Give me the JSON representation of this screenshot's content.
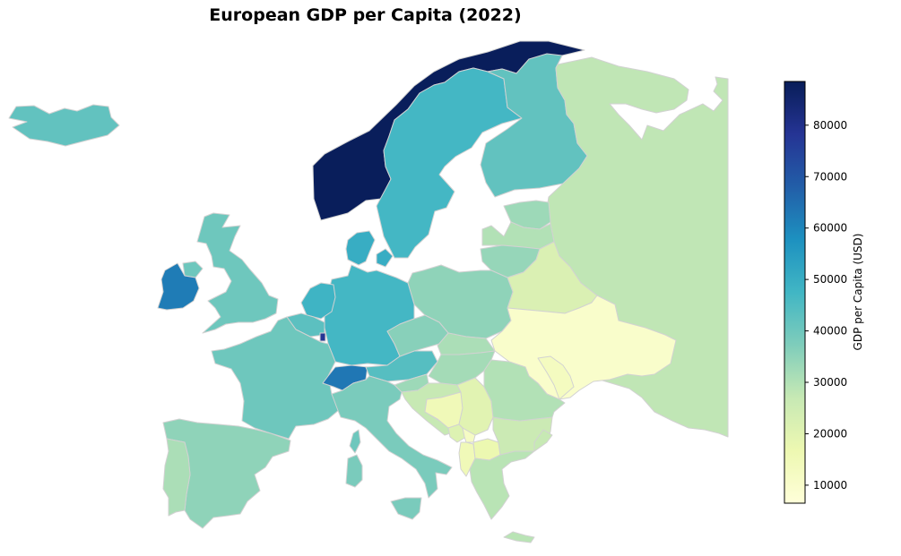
{
  "title": "European GDP per Capita (2022)",
  "colorbar": {
    "label": "GDP per Capita (USD)",
    "min": 6500,
    "max": 88500,
    "ticks": [
      "10000",
      "20000",
      "30000",
      "40000",
      "50000",
      "60000",
      "70000",
      "80000"
    ],
    "colormap": [
      "#ffffd9",
      "#edf8b1",
      "#c7e9b4",
      "#7fcdbb",
      "#41b6c4",
      "#1d91c0",
      "#225ea8",
      "#253494",
      "#081d58"
    ]
  },
  "chart_data": {
    "type": "choropleth",
    "title": "European GDP per Capita (2022)",
    "value_label": "GDP per Capita (USD)",
    "range": [
      6500,
      88500
    ],
    "regions": [
      {
        "region": "Norway",
        "value": 88000
      },
      {
        "region": "Iceland",
        "value": 42000
      },
      {
        "region": "Sweden",
        "value": 47000
      },
      {
        "region": "Finland",
        "value": 42000
      },
      {
        "region": "Denmark",
        "value": 50000
      },
      {
        "region": "Russia",
        "value": 28000
      },
      {
        "region": "Estonia",
        "value": 33000
      },
      {
        "region": "Latvia",
        "value": 30000
      },
      {
        "region": "Lithuania",
        "value": 34000
      },
      {
        "region": "Belarus",
        "value": 22000
      },
      {
        "region": "Poland",
        "value": 35000
      },
      {
        "region": "Germany",
        "value": 47000
      },
      {
        "region": "Netherlands",
        "value": 48000
      },
      {
        "region": "Belgium",
        "value": 43000
      },
      {
        "region": "Luxembourg",
        "value": 78000
      },
      {
        "region": "France",
        "value": 40000
      },
      {
        "region": "United Kingdom",
        "value": 40000
      },
      {
        "region": "Ireland",
        "value": 62000
      },
      {
        "region": "Switzerland",
        "value": 63000
      },
      {
        "region": "Austria",
        "value": 44000
      },
      {
        "region": "Czechia",
        "value": 36000
      },
      {
        "region": "Slovakia",
        "value": 31000
      },
      {
        "region": "Hungary",
        "value": 32000
      },
      {
        "region": "Slovenia",
        "value": 33000
      },
      {
        "region": "Croatia",
        "value": 27000
      },
      {
        "region": "Bosnia and Herzegovina",
        "value": 15000
      },
      {
        "region": "Serbia",
        "value": 20000
      },
      {
        "region": "Montenegro",
        "value": 21000
      },
      {
        "region": "Kosovo",
        "value": 12000
      },
      {
        "region": "North Macedonia",
        "value": 17000
      },
      {
        "region": "Albania",
        "value": 15000
      },
      {
        "region": "Greece",
        "value": 29000
      },
      {
        "region": "Bulgaria",
        "value": 26000
      },
      {
        "region": "Romania",
        "value": 30000
      },
      {
        "region": "Moldova",
        "value": 13000
      },
      {
        "region": "Ukraine",
        "value": 10000
      },
      {
        "region": "Italy",
        "value": 38000
      },
      {
        "region": "Spain",
        "value": 35000
      },
      {
        "region": "Portugal",
        "value": 31000
      },
      {
        "region": "Turkey",
        "value": 27000
      }
    ]
  }
}
